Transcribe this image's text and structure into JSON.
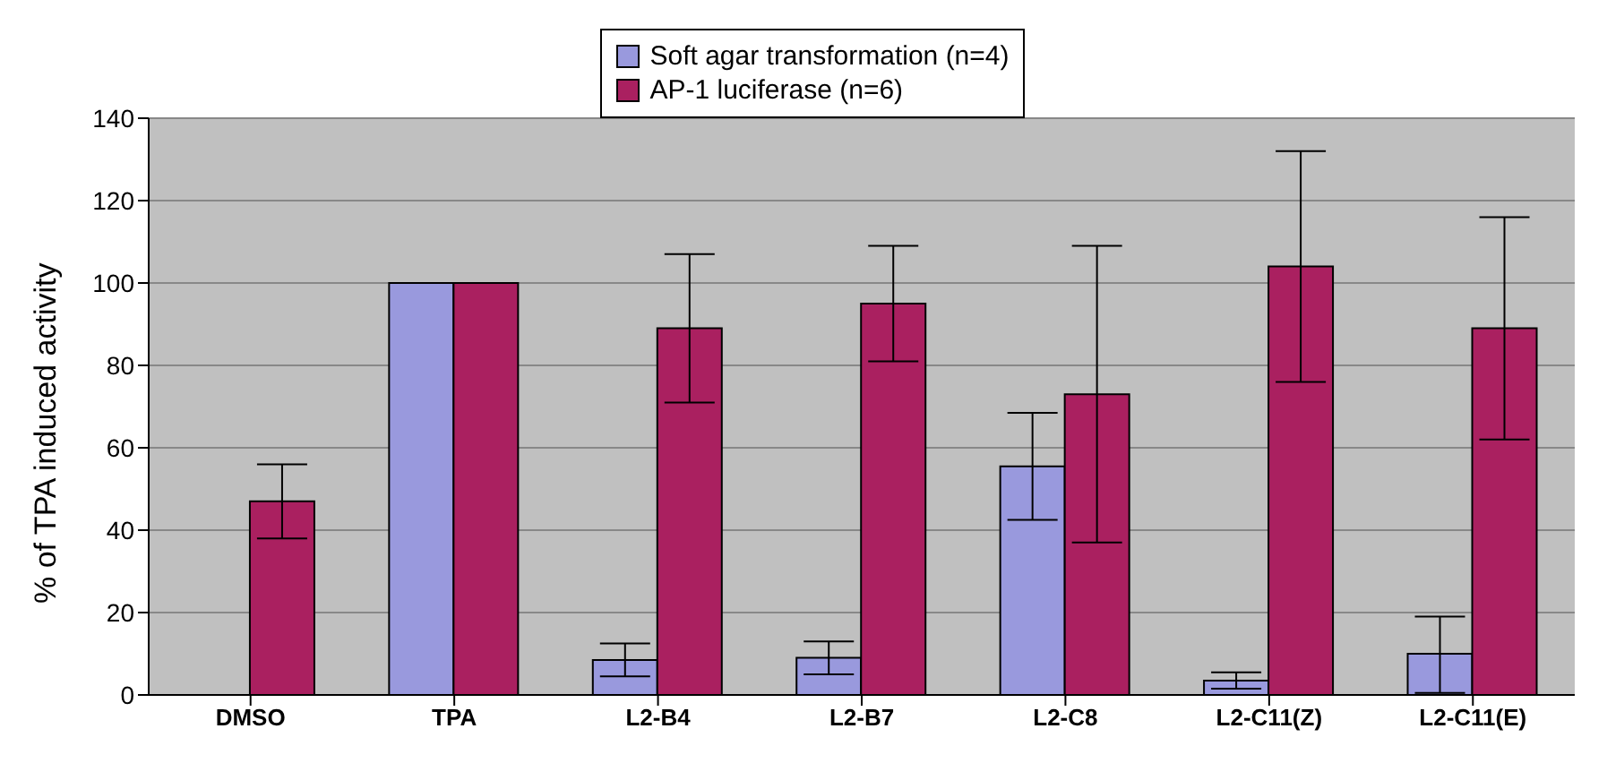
{
  "chart_data": {
    "type": "bar",
    "ylabel": "% of TPA induced activity",
    "categories": [
      "DMSO",
      "TPA",
      "L2-B4",
      "L2-B7",
      "L2-C8",
      "L2-C11(Z)",
      "L2-C11(E)"
    ],
    "series": [
      {
        "name": "Soft agar transformation (n=4)",
        "color": "#9999dd",
        "values": [
          0,
          100,
          8.5,
          9,
          55.5,
          3.5,
          10
        ],
        "errors": [
          null,
          null,
          [
            4.5,
            12.5
          ],
          [
            5,
            13
          ],
          [
            42.5,
            68.5
          ],
          [
            1.5,
            5.5
          ],
          [
            0.5,
            19
          ]
        ]
      },
      {
        "name": "AP-1 luciferase (n=6)",
        "color": "#aa2060",
        "values": [
          47,
          100,
          89,
          95,
          73,
          104,
          89
        ],
        "errors": [
          [
            38,
            56
          ],
          null,
          [
            71,
            107
          ],
          [
            81,
            109
          ],
          [
            37,
            109
          ],
          [
            76,
            132
          ],
          [
            62,
            116
          ]
        ]
      }
    ],
    "ylim": [
      0,
      140
    ],
    "yticks": [
      0,
      20,
      40,
      60,
      80,
      100,
      120,
      140
    ],
    "grid": "y",
    "legend": "top"
  }
}
